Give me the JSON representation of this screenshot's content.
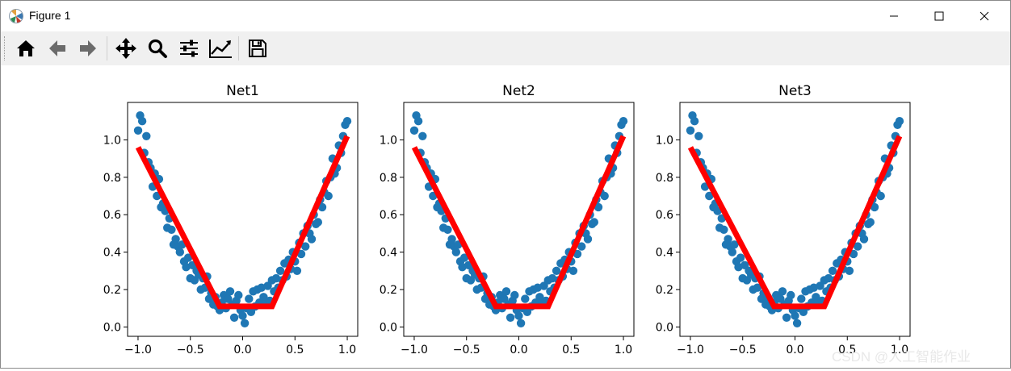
{
  "window": {
    "title": "Figure 1",
    "app_icon": "matplotlib-icon",
    "controls": [
      "minimize-icon",
      "maximize-icon",
      "close-icon"
    ]
  },
  "toolbar": {
    "buttons": [
      {
        "name": "home-button",
        "icon": "home-icon"
      },
      {
        "name": "back-button",
        "icon": "arrow-left-icon"
      },
      {
        "name": "forward-button",
        "icon": "arrow-right-icon"
      },
      {
        "name": "pan-button",
        "icon": "move-icon"
      },
      {
        "name": "zoom-button",
        "icon": "magnifier-icon"
      },
      {
        "name": "subplots-button",
        "icon": "sliders-icon"
      },
      {
        "name": "edit-axis-button",
        "icon": "line-chart-icon"
      },
      {
        "name": "save-button",
        "icon": "floppy-disk-icon"
      }
    ]
  },
  "watermark": "CSDN @人工智能作业",
  "colors": {
    "scatter": "#1f77b4",
    "fit_line": "#ff0000",
    "axis": "#000000"
  },
  "chart_data": [
    {
      "type": "scatter",
      "title": "Net1",
      "xlim": [
        -1.1,
        1.1
      ],
      "ylim": [
        -0.05,
        1.2
      ],
      "xticks": [
        -1.0,
        -0.5,
        0.0,
        0.5,
        1.0
      ],
      "xtick_labels": [
        "−1.0",
        "−0.5",
        "0.0",
        "0.5",
        "1.0"
      ],
      "yticks": [
        0.0,
        0.2,
        0.4,
        0.6,
        0.8,
        1.0
      ],
      "ytick_labels": [
        "0.0",
        "0.2",
        "0.4",
        "0.6",
        "0.8",
        "1.0"
      ],
      "series": [
        {
          "name": "data",
          "kind": "scatter",
          "x": [
            -1.0,
            -0.98,
            -0.96,
            -0.94,
            -0.92,
            -0.9,
            -0.88,
            -0.86,
            -0.84,
            -0.82,
            -0.8,
            -0.78,
            -0.76,
            -0.74,
            -0.72,
            -0.7,
            -0.68,
            -0.66,
            -0.64,
            -0.62,
            -0.6,
            -0.58,
            -0.56,
            -0.54,
            -0.52,
            -0.5,
            -0.48,
            -0.46,
            -0.44,
            -0.42,
            -0.4,
            -0.38,
            -0.36,
            -0.34,
            -0.32,
            -0.3,
            -0.28,
            -0.26,
            -0.24,
            -0.22,
            -0.2,
            -0.18,
            -0.16,
            -0.14,
            -0.12,
            -0.1,
            -0.08,
            -0.06,
            -0.04,
            -0.02,
            0.0,
            0.02,
            0.04,
            0.06,
            0.08,
            0.1,
            0.12,
            0.14,
            0.16,
            0.18,
            0.2,
            0.22,
            0.24,
            0.26,
            0.28,
            0.3,
            0.32,
            0.34,
            0.36,
            0.38,
            0.4,
            0.42,
            0.44,
            0.46,
            0.48,
            0.5,
            0.52,
            0.54,
            0.56,
            0.58,
            0.6,
            0.62,
            0.64,
            0.66,
            0.68,
            0.7,
            0.72,
            0.74,
            0.76,
            0.78,
            0.8,
            0.82,
            0.84,
            0.86,
            0.88,
            0.9,
            0.92,
            0.94,
            0.96,
            0.98,
            1.0
          ],
          "y": [
            1.05,
            1.13,
            1.1,
            0.93,
            1.02,
            0.88,
            0.85,
            0.75,
            0.82,
            0.7,
            0.79,
            0.64,
            0.66,
            0.62,
            0.53,
            0.58,
            0.52,
            0.44,
            0.47,
            0.43,
            0.4,
            0.44,
            0.35,
            0.32,
            0.37,
            0.26,
            0.33,
            0.25,
            0.3,
            0.28,
            0.2,
            0.26,
            0.21,
            0.27,
            0.15,
            0.18,
            0.12,
            0.16,
            0.11,
            0.09,
            0.13,
            0.17,
            0.1,
            0.15,
            0.19,
            0.12,
            0.05,
            0.14,
            0.17,
            0.09,
            0.06,
            0.02,
            0.1,
            0.15,
            0.08,
            0.19,
            0.11,
            0.2,
            0.13,
            0.21,
            0.16,
            0.12,
            0.22,
            0.14,
            0.25,
            0.19,
            0.26,
            0.21,
            0.3,
            0.25,
            0.34,
            0.27,
            0.36,
            0.31,
            0.4,
            0.35,
            0.3,
            0.45,
            0.39,
            0.5,
            0.43,
            0.54,
            0.5,
            0.47,
            0.6,
            0.55,
            0.56,
            0.68,
            0.64,
            0.72,
            0.78,
            0.7,
            0.8,
            0.9,
            0.82,
            0.85,
            0.97,
            0.93,
            1.02,
            1.08,
            1.1
          ]
        },
        {
          "name": "fit",
          "kind": "line",
          "x": [
            -1.0,
            -0.22,
            0.28,
            1.0
          ],
          "y": [
            0.96,
            0.11,
            0.11,
            1.02
          ]
        }
      ]
    },
    {
      "type": "scatter",
      "title": "Net2",
      "xlim": [
        -1.1,
        1.1
      ],
      "ylim": [
        -0.05,
        1.2
      ],
      "xticks": [
        -1.0,
        -0.5,
        0.0,
        0.5,
        1.0
      ],
      "xtick_labels": [
        "−1.0",
        "−0.5",
        "0.0",
        "0.5",
        "1.0"
      ],
      "yticks": [
        0.0,
        0.2,
        0.4,
        0.6,
        0.8,
        1.0
      ],
      "ytick_labels": [
        "0.0",
        "0.2",
        "0.4",
        "0.6",
        "0.8",
        "1.0"
      ],
      "series": [
        {
          "name": "data",
          "kind": "scatter",
          "x": [
            -1.0,
            -0.98,
            -0.96,
            -0.94,
            -0.92,
            -0.9,
            -0.88,
            -0.86,
            -0.84,
            -0.82,
            -0.8,
            -0.78,
            -0.76,
            -0.74,
            -0.72,
            -0.7,
            -0.68,
            -0.66,
            -0.64,
            -0.62,
            -0.6,
            -0.58,
            -0.56,
            -0.54,
            -0.52,
            -0.5,
            -0.48,
            -0.46,
            -0.44,
            -0.42,
            -0.4,
            -0.38,
            -0.36,
            -0.34,
            -0.32,
            -0.3,
            -0.28,
            -0.26,
            -0.24,
            -0.22,
            -0.2,
            -0.18,
            -0.16,
            -0.14,
            -0.12,
            -0.1,
            -0.08,
            -0.06,
            -0.04,
            -0.02,
            0.0,
            0.02,
            0.04,
            0.06,
            0.08,
            0.1,
            0.12,
            0.14,
            0.16,
            0.18,
            0.2,
            0.22,
            0.24,
            0.26,
            0.28,
            0.3,
            0.32,
            0.34,
            0.36,
            0.38,
            0.4,
            0.42,
            0.44,
            0.46,
            0.48,
            0.5,
            0.52,
            0.54,
            0.56,
            0.58,
            0.6,
            0.62,
            0.64,
            0.66,
            0.68,
            0.7,
            0.72,
            0.74,
            0.76,
            0.78,
            0.8,
            0.82,
            0.84,
            0.86,
            0.88,
            0.9,
            0.92,
            0.94,
            0.96,
            0.98,
            1.0
          ],
          "y": [
            1.05,
            1.13,
            1.1,
            0.93,
            1.02,
            0.88,
            0.85,
            0.75,
            0.82,
            0.7,
            0.79,
            0.64,
            0.66,
            0.62,
            0.53,
            0.58,
            0.52,
            0.44,
            0.47,
            0.43,
            0.4,
            0.44,
            0.35,
            0.32,
            0.37,
            0.26,
            0.33,
            0.25,
            0.3,
            0.28,
            0.2,
            0.26,
            0.21,
            0.27,
            0.15,
            0.18,
            0.12,
            0.16,
            0.11,
            0.09,
            0.13,
            0.17,
            0.1,
            0.15,
            0.19,
            0.12,
            0.05,
            0.14,
            0.17,
            0.09,
            0.06,
            0.02,
            0.1,
            0.15,
            0.08,
            0.19,
            0.11,
            0.2,
            0.13,
            0.21,
            0.16,
            0.12,
            0.22,
            0.14,
            0.25,
            0.19,
            0.26,
            0.21,
            0.3,
            0.25,
            0.34,
            0.27,
            0.36,
            0.31,
            0.4,
            0.35,
            0.3,
            0.45,
            0.39,
            0.5,
            0.43,
            0.54,
            0.5,
            0.47,
            0.6,
            0.55,
            0.56,
            0.68,
            0.64,
            0.72,
            0.78,
            0.7,
            0.8,
            0.9,
            0.82,
            0.85,
            0.97,
            0.93,
            1.02,
            1.08,
            1.1
          ]
        },
        {
          "name": "fit",
          "kind": "line",
          "x": [
            -1.0,
            -0.22,
            0.28,
            1.0
          ],
          "y": [
            0.96,
            0.11,
            0.11,
            1.02
          ]
        }
      ]
    },
    {
      "type": "scatter",
      "title": "Net3",
      "xlim": [
        -1.1,
        1.1
      ],
      "ylim": [
        -0.05,
        1.2
      ],
      "xticks": [
        -1.0,
        -0.5,
        0.0,
        0.5,
        1.0
      ],
      "xtick_labels": [
        "−1.0",
        "−0.5",
        "0.0",
        "0.5",
        "1.0"
      ],
      "yticks": [
        0.0,
        0.2,
        0.4,
        0.6,
        0.8,
        1.0
      ],
      "ytick_labels": [
        "0.0",
        "0.2",
        "0.4",
        "0.6",
        "0.8",
        "1.0"
      ],
      "series": [
        {
          "name": "data",
          "kind": "scatter",
          "x": [
            -1.0,
            -0.98,
            -0.96,
            -0.94,
            -0.92,
            -0.9,
            -0.88,
            -0.86,
            -0.84,
            -0.82,
            -0.8,
            -0.78,
            -0.76,
            -0.74,
            -0.72,
            -0.7,
            -0.68,
            -0.66,
            -0.64,
            -0.62,
            -0.6,
            -0.58,
            -0.56,
            -0.54,
            -0.52,
            -0.5,
            -0.48,
            -0.46,
            -0.44,
            -0.42,
            -0.4,
            -0.38,
            -0.36,
            -0.34,
            -0.32,
            -0.3,
            -0.28,
            -0.26,
            -0.24,
            -0.22,
            -0.2,
            -0.18,
            -0.16,
            -0.14,
            -0.12,
            -0.1,
            -0.08,
            -0.06,
            -0.04,
            -0.02,
            0.0,
            0.02,
            0.04,
            0.06,
            0.08,
            0.1,
            0.12,
            0.14,
            0.16,
            0.18,
            0.2,
            0.22,
            0.24,
            0.26,
            0.28,
            0.3,
            0.32,
            0.34,
            0.36,
            0.38,
            0.4,
            0.42,
            0.44,
            0.46,
            0.48,
            0.5,
            0.52,
            0.54,
            0.56,
            0.58,
            0.6,
            0.62,
            0.64,
            0.66,
            0.68,
            0.7,
            0.72,
            0.74,
            0.76,
            0.78,
            0.8,
            0.82,
            0.84,
            0.86,
            0.88,
            0.9,
            0.92,
            0.94,
            0.96,
            0.98,
            1.0
          ],
          "y": [
            1.05,
            1.13,
            1.1,
            0.93,
            1.02,
            0.88,
            0.85,
            0.75,
            0.82,
            0.7,
            0.79,
            0.64,
            0.66,
            0.62,
            0.53,
            0.58,
            0.52,
            0.44,
            0.47,
            0.43,
            0.4,
            0.44,
            0.35,
            0.32,
            0.37,
            0.26,
            0.33,
            0.25,
            0.3,
            0.28,
            0.2,
            0.26,
            0.21,
            0.27,
            0.15,
            0.18,
            0.12,
            0.16,
            0.11,
            0.09,
            0.13,
            0.17,
            0.1,
            0.15,
            0.19,
            0.12,
            0.05,
            0.14,
            0.17,
            0.09,
            0.06,
            0.02,
            0.1,
            0.15,
            0.08,
            0.19,
            0.11,
            0.2,
            0.13,
            0.21,
            0.16,
            0.12,
            0.22,
            0.14,
            0.25,
            0.19,
            0.26,
            0.21,
            0.3,
            0.25,
            0.34,
            0.27,
            0.36,
            0.31,
            0.4,
            0.35,
            0.3,
            0.45,
            0.39,
            0.5,
            0.43,
            0.54,
            0.5,
            0.47,
            0.6,
            0.55,
            0.56,
            0.68,
            0.64,
            0.72,
            0.78,
            0.7,
            0.8,
            0.9,
            0.82,
            0.85,
            0.97,
            0.93,
            1.02,
            1.08,
            1.1
          ]
        },
        {
          "name": "fit",
          "kind": "line",
          "x": [
            -1.0,
            -0.2,
            0.28,
            1.0
          ],
          "y": [
            0.96,
            0.11,
            0.11,
            1.02
          ]
        }
      ]
    }
  ]
}
